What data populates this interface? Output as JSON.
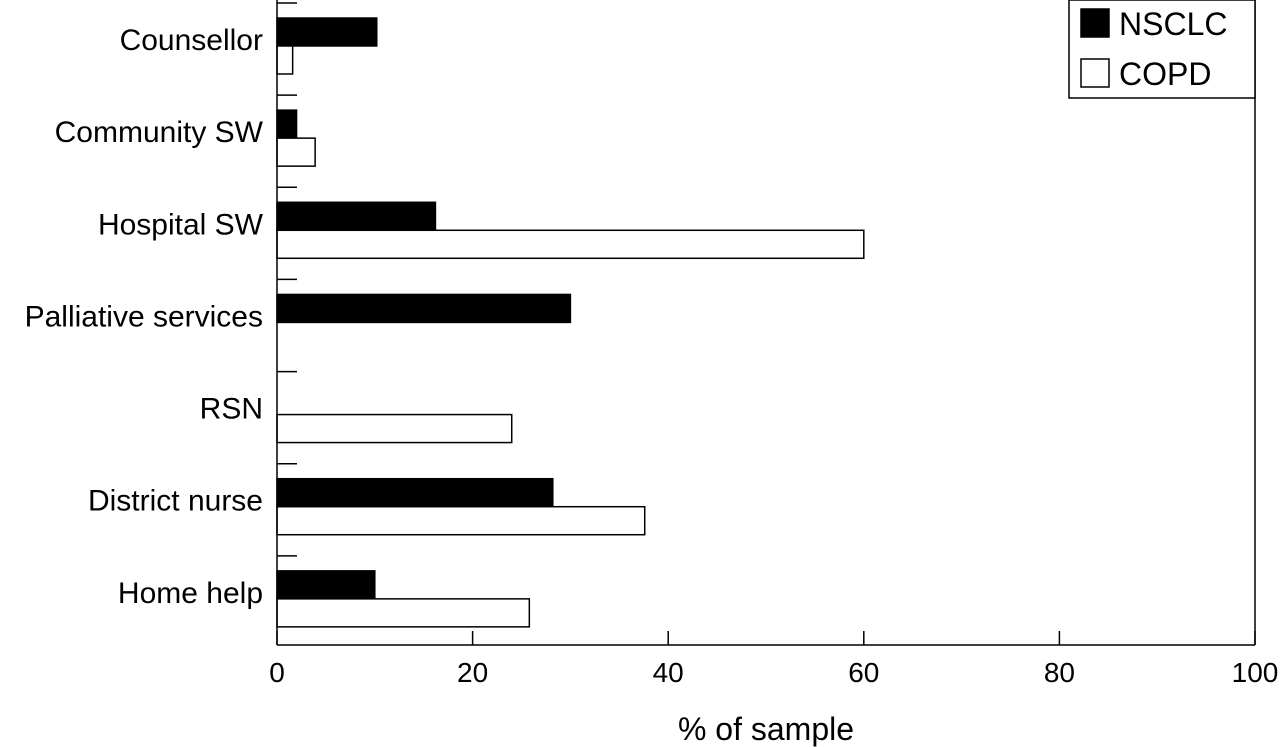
{
  "chart_data": {
    "type": "bar",
    "orientation": "horizontal",
    "categories": [
      "Counsellor",
      "Community SW",
      "Hospital SW",
      "Palliative services",
      "RSN",
      "District nurse",
      "Home help"
    ],
    "series": [
      {
        "name": "NSCLC",
        "color": "#000000",
        "values": [
          10.2,
          2.0,
          16.2,
          30.0,
          0,
          28.2,
          10.0
        ]
      },
      {
        "name": "COPD",
        "color": "#ffffff",
        "values": [
          1.6,
          3.9,
          60.0,
          0,
          24.0,
          37.6,
          25.8
        ]
      }
    ],
    "xlabel": "% of sample",
    "ylabel": "",
    "xlim": [
      0,
      100
    ],
    "xticks": [
      "0",
      "20",
      "40",
      "60",
      "80",
      "100"
    ],
    "grid": false,
    "legend": {
      "position": "top-right"
    }
  }
}
